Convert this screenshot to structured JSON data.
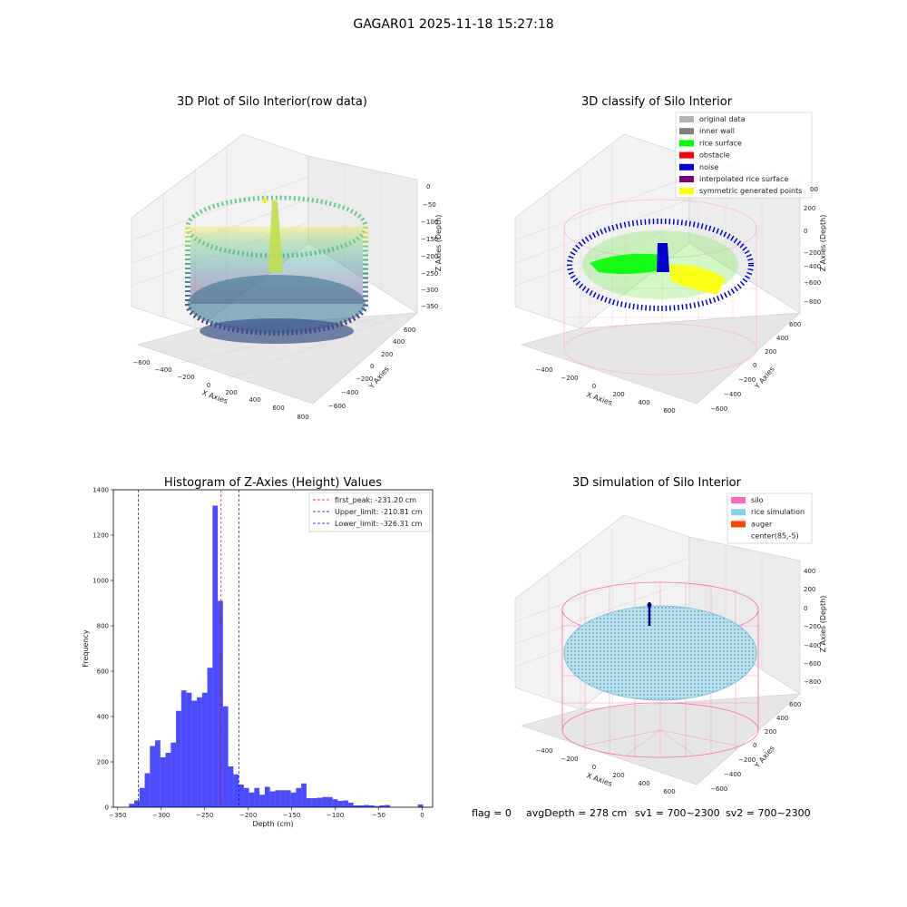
{
  "figure": {
    "suptitle": "GAGAR01 2025-11-18 15:27:18",
    "footer": {
      "flag": "flag = 0",
      "avg_depth": "avgDepth = 278 cm",
      "sv1": "sv1 = 700~2300",
      "sv2": "sv2 = 700~2300"
    }
  },
  "chart_data": [
    {
      "type": "scatter3d",
      "title": "3D Plot of Silo Interior(row data)",
      "xlabel": "X Axies",
      "ylabel": "Y Axies",
      "zlabel": "Z Axies (Depth)",
      "x_ticks": [
        "−600",
        "−400",
        "−200",
        "0",
        "200",
        "400",
        "600",
        "800"
      ],
      "y_ticks": [
        "−600",
        "−400",
        "−200",
        "0",
        "200",
        "400",
        "600"
      ],
      "z_ticks": [
        "0",
        "−50",
        "−100",
        "−150",
        "−200",
        "−250",
        "−300",
        "−350"
      ],
      "xlim": [
        -600,
        800
      ],
      "ylim": [
        -600,
        600
      ],
      "zlim": [
        -350,
        0
      ],
      "colormap": "viridis"
    },
    {
      "type": "scatter3d",
      "title": "3D classify of Silo Interior",
      "xlabel": "X Axies",
      "ylabel": "Y Axies",
      "zlabel": "Z Axies (Depth)",
      "x_ticks": [
        "−400",
        "−200",
        "0",
        "200",
        "400",
        "600"
      ],
      "y_ticks": [
        "−600",
        "−400",
        "−200",
        "0",
        "200",
        "400",
        "600"
      ],
      "z_ticks": [
        "200",
        "0",
        "−200",
        "−400",
        "−600",
        "−800"
      ],
      "z_tick_partial": "00",
      "xlim": [
        -400,
        600
      ],
      "ylim": [
        -600,
        600
      ],
      "zlim": [
        -800,
        200
      ],
      "legend": [
        {
          "label": "original data",
          "color": "#b4b4b4"
        },
        {
          "label": "inner wall",
          "color": "#808080"
        },
        {
          "label": "rice surface",
          "color": "#00ff00"
        },
        {
          "label": "obstacle",
          "color": "#ff0000"
        },
        {
          "label": "noise",
          "color": "#0000ee"
        },
        {
          "label": "interpolated rice surface",
          "color": "#800080"
        },
        {
          "label": "symmetric generated points",
          "color": "#ffff00"
        }
      ]
    },
    {
      "type": "bar",
      "title": "Histogram of Z-Axies (Height) Values",
      "xlabel": "Depth (cm)",
      "ylabel": "Frequency",
      "xlim": [
        -355,
        12
      ],
      "ylim": [
        0,
        1400
      ],
      "x_ticks": [
        -350,
        -300,
        -250,
        -200,
        -150,
        -100,
        -50,
        0
      ],
      "x_tick_labels": [
        "−350",
        "−300",
        "−250",
        "−200",
        "−150",
        "−100",
        "−50",
        "0"
      ],
      "y_ticks": [
        0,
        200,
        400,
        600,
        800,
        1000,
        1200,
        1400
      ],
      "y_tick_labels": [
        "0",
        "200",
        "400",
        "600",
        "800",
        "1000",
        "1200",
        "1400"
      ],
      "bar_color": "#0000ff",
      "bar_opacity": 0.7,
      "bin_width": 6,
      "bins": [
        {
          "x0": -337,
          "value": 15
        },
        {
          "x0": -331,
          "value": 30
        },
        {
          "x0": -325,
          "value": 85
        },
        {
          "x0": -319,
          "value": 150
        },
        {
          "x0": -313,
          "value": 270
        },
        {
          "x0": -307,
          "value": 295
        },
        {
          "x0": -301,
          "value": 220
        },
        {
          "x0": -295,
          "value": 240
        },
        {
          "x0": -289,
          "value": 285
        },
        {
          "x0": -283,
          "value": 425
        },
        {
          "x0": -277,
          "value": 515
        },
        {
          "x0": -271,
          "value": 505
        },
        {
          "x0": -265,
          "value": 470
        },
        {
          "x0": -259,
          "value": 485
        },
        {
          "x0": -253,
          "value": 505
        },
        {
          "x0": -247,
          "value": 615
        },
        {
          "x0": -241,
          "value": 1330
        },
        {
          "x0": -235,
          "value": 910
        },
        {
          "x0": -229,
          "value": 445
        },
        {
          "x0": -223,
          "value": 180
        },
        {
          "x0": -217,
          "value": 145
        },
        {
          "x0": -211,
          "value": 100
        },
        {
          "x0": -205,
          "value": 85
        },
        {
          "x0": -199,
          "value": 65
        },
        {
          "x0": -193,
          "value": 85
        },
        {
          "x0": -187,
          "value": 55
        },
        {
          "x0": -181,
          "value": 90
        },
        {
          "x0": -175,
          "value": 70
        },
        {
          "x0": -169,
          "value": 75
        },
        {
          "x0": -163,
          "value": 75
        },
        {
          "x0": -157,
          "value": 75
        },
        {
          "x0": -151,
          "value": 65
        },
        {
          "x0": -145,
          "value": 85
        },
        {
          "x0": -139,
          "value": 105
        },
        {
          "x0": -133,
          "value": 40
        },
        {
          "x0": -127,
          "value": 40
        },
        {
          "x0": -121,
          "value": 42
        },
        {
          "x0": -115,
          "value": 45
        },
        {
          "x0": -109,
          "value": 45
        },
        {
          "x0": -103,
          "value": 35
        },
        {
          "x0": -97,
          "value": 28
        },
        {
          "x0": -91,
          "value": 30
        },
        {
          "x0": -85,
          "value": 20
        },
        {
          "x0": -79,
          "value": 8
        },
        {
          "x0": -73,
          "value": 8
        },
        {
          "x0": -67,
          "value": 10
        },
        {
          "x0": -61,
          "value": 8
        },
        {
          "x0": -55,
          "value": 5
        },
        {
          "x0": -49,
          "value": 8
        },
        {
          "x0": -43,
          "value": 10
        },
        {
          "x0": -5,
          "value": 12
        }
      ],
      "vlines": [
        {
          "label": "first_peak: -231.20 cm",
          "x": -231.2,
          "color": "#ff0000"
        },
        {
          "label": "Upper_limit: -210.81 cm",
          "x": -210.81,
          "color": "#0000ff"
        },
        {
          "label": "Lower_limit: -326.31 cm",
          "x": -326.31,
          "color": "#0000ff"
        }
      ]
    },
    {
      "type": "surface3d",
      "title": "3D simulation of Silo Interior",
      "xlabel": "X Axies",
      "ylabel": "Y Axies",
      "zlabel": "Z Axies (Depth)",
      "x_ticks": [
        "−400",
        "−200",
        "0",
        "200",
        "400",
        "600"
      ],
      "y_ticks": [
        "−600",
        "−400",
        "−200",
        "0",
        "200",
        "400",
        "600"
      ],
      "z_ticks": [
        "400",
        "200",
        "0",
        "−200",
        "−400",
        "−600",
        "−800"
      ],
      "xlim": [
        -400,
        600
      ],
      "ylim": [
        -600,
        600
      ],
      "zlim": [
        -800,
        400
      ],
      "legend": [
        {
          "label": "silo",
          "color": "#ff69b4"
        },
        {
          "label": "rice simulation",
          "color": "#87ceeb"
        },
        {
          "label": "auger",
          "color": "#ff4500"
        },
        {
          "label": "center(85,-5)",
          "color": ""
        }
      ]
    }
  ]
}
